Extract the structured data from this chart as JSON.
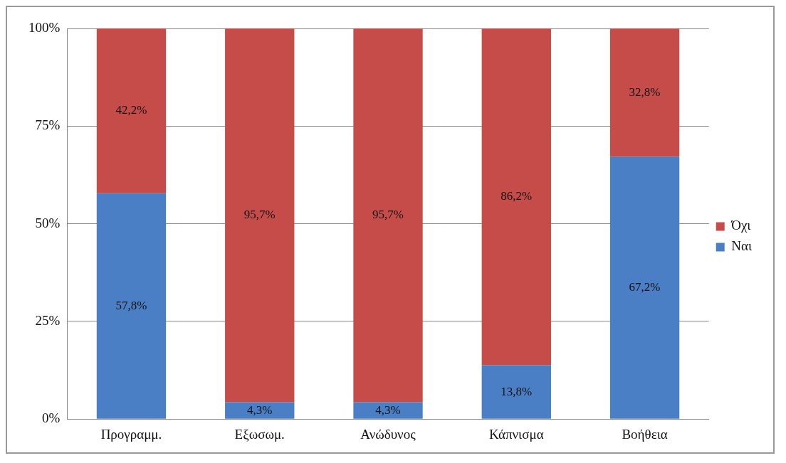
{
  "chart_data": {
    "type": "bar",
    "stacked": true,
    "categories": [
      "Προγραμμ.",
      "Εξωσωμ.",
      "Ανώδυνος",
      "Κάπνισμα",
      "Βοήθεια"
    ],
    "series": [
      {
        "name": "Ναι",
        "color": "#4a7fc6",
        "values": [
          57.8,
          4.3,
          4.3,
          13.8,
          67.2
        ],
        "value_labels": [
          "57,8%",
          "4,3%",
          "4,3%",
          "13,8%",
          "67,2%"
        ]
      },
      {
        "name": "Όχι",
        "color": "#c64c49",
        "values": [
          42.2,
          95.7,
          95.7,
          86.2,
          32.8
        ],
        "value_labels": [
          "42,2%",
          "95,7%",
          "95,7%",
          "86,2%",
          "32,8%"
        ]
      }
    ],
    "ylim": [
      0,
      100
    ],
    "yticks": [
      {
        "value": 0,
        "label": "0%"
      },
      {
        "value": 25,
        "label": "25%"
      },
      {
        "value": 50,
        "label": "50%"
      },
      {
        "value": 75,
        "label": "75%"
      },
      {
        "value": 100,
        "label": "100%"
      }
    ],
    "grid": "y",
    "legend": "right"
  }
}
